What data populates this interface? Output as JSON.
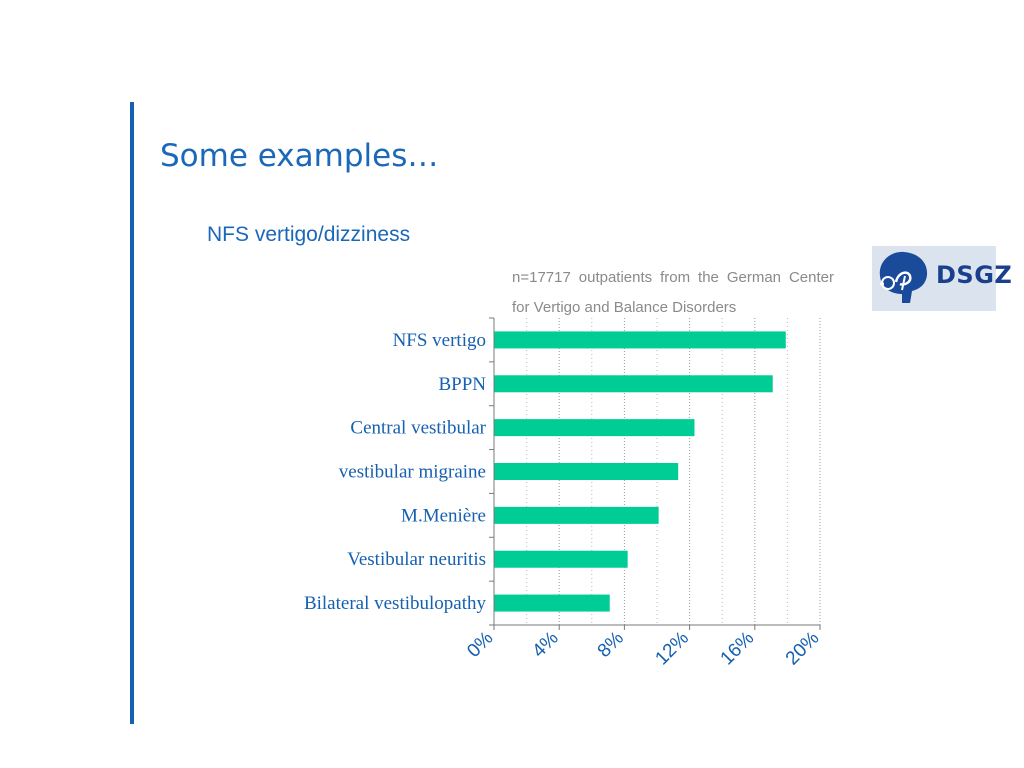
{
  "slide": {
    "title": "Some examples…",
    "subtitle": "NFS vertigo/dizziness",
    "note": "n=17717 outpatients from the German Center for Vertigo and Balance Disorders"
  },
  "logo": {
    "text": "DSGZ",
    "icon": "brain-ear-icon"
  },
  "colors": {
    "accent": "#1560b0",
    "title": "#1b68b8",
    "bar": "#00cc96",
    "label": "#1560b0",
    "note": "#8a8a8a"
  },
  "chart_data": {
    "type": "bar",
    "orientation": "horizontal",
    "categories": [
      "NFS vertigo",
      "BPPN",
      "Central vestibular",
      "vestibular migraine",
      "M.Menière",
      "Vestibular neuritis",
      "Bilateral vestibulopathy"
    ],
    "values": [
      17.9,
      17.1,
      12.3,
      11.3,
      10.1,
      8.2,
      7.1
    ],
    "xticks": [
      "0%",
      "4%",
      "8%",
      "12%",
      "16%",
      "20%"
    ],
    "xlim": [
      0,
      20
    ],
    "grid": "vertical dotted",
    "legend": "none"
  }
}
